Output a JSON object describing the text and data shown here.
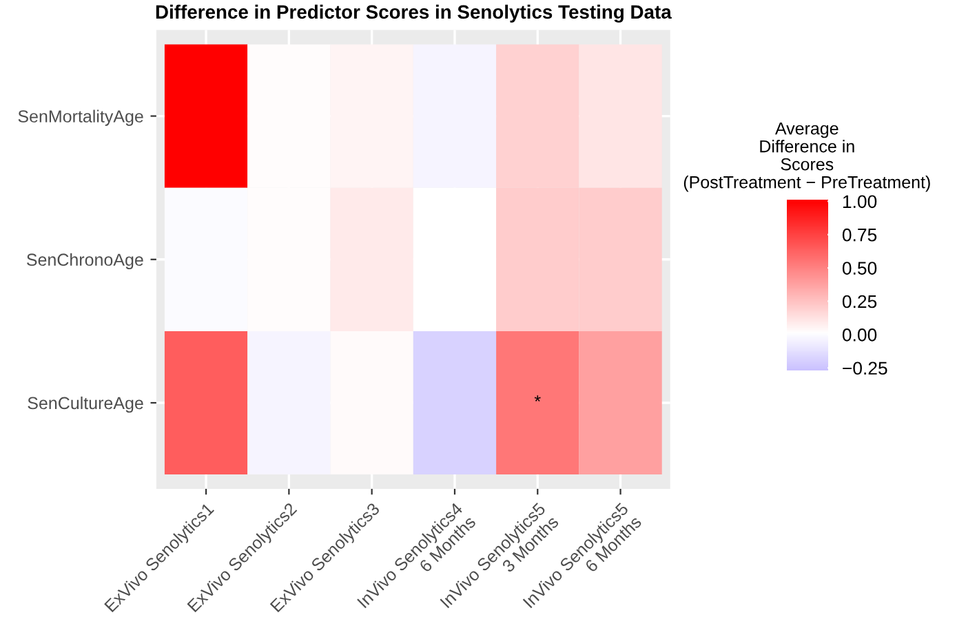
{
  "chart_data": {
    "type": "heatmap",
    "title": "Difference in Predictor Scores in Senolytics Testing Data",
    "categories": [
      "ExVivo Senolytics1",
      "ExVivo Senolytics2",
      "ExVivo Senolytics3",
      "InVivo Senolytics4\n6 Months",
      "InVivo Senolytics5\n3 Months",
      "InVivo Senolytics5\n6 Months"
    ],
    "y_categories": [
      "SenMortalityAge",
      "SenChronoAge",
      "SenCultureAge"
    ],
    "cells": [
      [
        1.0,
        0.01,
        0.04,
        -0.05,
        0.18,
        0.1
      ],
      [
        -0.02,
        0.01,
        0.08,
        0.0,
        0.2,
        0.2
      ],
      [
        0.63,
        -0.05,
        0.02,
        -0.2,
        0.53,
        0.37
      ]
    ],
    "clabel": "Average\nDifference in\nScores\n(PostTreatment − PreTreatment)",
    "clim": [
      -0.28,
      1.0
    ],
    "cticks": [
      {
        "value": 1.0,
        "label": "1.00"
      },
      {
        "value": 0.75,
        "label": "0.75"
      },
      {
        "value": 0.5,
        "label": "0.50"
      },
      {
        "value": 0.25,
        "label": "0.25"
      },
      {
        "value": 0.0,
        "label": "0.00"
      },
      {
        "value": -0.25,
        "label": "−0.25"
      }
    ],
    "cell_labels": [
      [
        null,
        null,
        null,
        null,
        null,
        null
      ],
      [
        null,
        null,
        null,
        null,
        null,
        null
      ],
      [
        null,
        null,
        null,
        null,
        "*",
        null
      ]
    ],
    "grid": true
  }
}
